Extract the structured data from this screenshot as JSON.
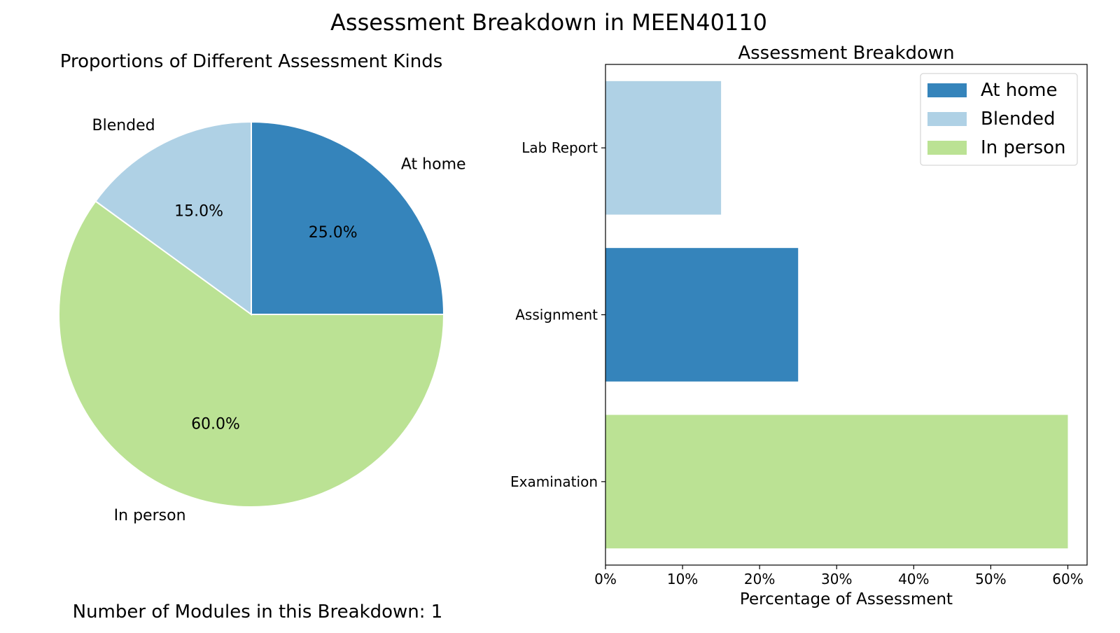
{
  "suptitle": "Assessment Breakdown in MEEN40110",
  "footer": "Number of Modules in this Breakdown: 1",
  "colors": {
    "at_home": "#3584bb",
    "blended": "#afd1e5",
    "in_person": "#bbe294"
  },
  "chart_data": [
    {
      "type": "pie",
      "title": "Proportions of Different Assessment Kinds",
      "slices": [
        {
          "label": "At home",
          "value": 25.0,
          "pct_label": "25.0%",
          "color_key": "at_home"
        },
        {
          "label": "In person",
          "value": 60.0,
          "pct_label": "60.0%",
          "color_key": "in_person"
        },
        {
          "label": "Blended",
          "value": 15.0,
          "pct_label": "15.0%",
          "color_key": "blended"
        }
      ],
      "start_angle_deg": 90,
      "direction": "clockwise"
    },
    {
      "type": "bar",
      "orientation": "horizontal",
      "title": "Assessment Breakdown",
      "xlabel": "Percentage of Assessment",
      "ylabel": "",
      "xlim": [
        0,
        62.5
      ],
      "xticks": [
        0,
        10,
        20,
        30,
        40,
        50,
        60
      ],
      "xtick_labels": [
        "0%",
        "10%",
        "20%",
        "30%",
        "40%",
        "50%",
        "60%"
      ],
      "categories": [
        "Lab Report",
        "Assignment",
        "Examination"
      ],
      "bars": [
        {
          "category": "Lab Report",
          "value": 15,
          "color_key": "blended"
        },
        {
          "category": "Assignment",
          "value": 25,
          "color_key": "at_home"
        },
        {
          "category": "Examination",
          "value": 60,
          "color_key": "in_person"
        }
      ],
      "legend": {
        "placement": "top-right",
        "entries": [
          {
            "label": "At home",
            "color_key": "at_home"
          },
          {
            "label": "Blended",
            "color_key": "blended"
          },
          {
            "label": "In person",
            "color_key": "in_person"
          }
        ]
      }
    }
  ]
}
